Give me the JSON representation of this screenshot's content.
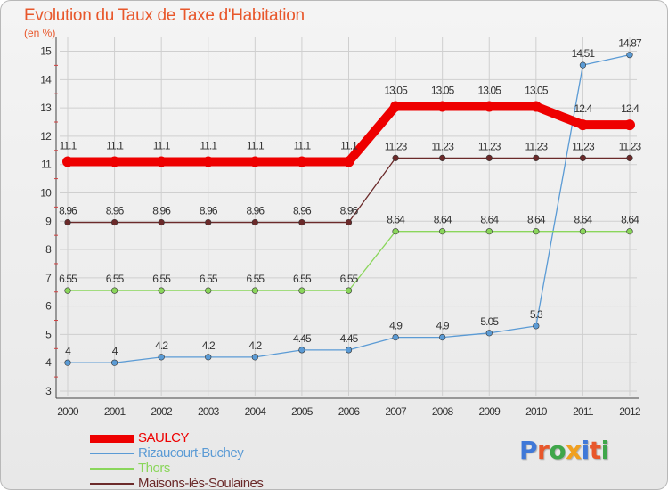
{
  "title": "Evolution du Taux de Taxe d'Habitation",
  "unit_label": "(en %)",
  "brand": {
    "text": "Proxiti",
    "letter_colors": [
      "#3f78d8",
      "#e8572b",
      "#3fa64a",
      "#f0a020",
      "#3f78d8",
      "#e8572b",
      "#3fa64a"
    ]
  },
  "chart_data": {
    "type": "line",
    "title": "Evolution du Taux de Taxe d'Habitation",
    "ylabel": "(en %)",
    "xlabel": "",
    "x": [
      "2000",
      "2001",
      "2002",
      "2003",
      "2004",
      "2005",
      "2006",
      "2007",
      "2008",
      "2009",
      "2010",
      "2011",
      "2012"
    ],
    "yticks": [
      3,
      4,
      5,
      6,
      7,
      8,
      9,
      10,
      11,
      12,
      13,
      14,
      15
    ],
    "ylim": [
      3,
      15.3
    ],
    "grid": true,
    "legend_position": "bottom-left",
    "series": [
      {
        "name": "SAULCY",
        "color": "#ee0000",
        "bold": true,
        "values": [
          11.1,
          11.1,
          11.1,
          11.1,
          11.1,
          11.1,
          11.1,
          13.05,
          13.05,
          13.05,
          13.05,
          12.4,
          12.4
        ],
        "labels": [
          "11.1",
          "11.1",
          "11.1",
          "11.1",
          "11.1",
          "11.1",
          "11.1",
          "13.05",
          "13.05",
          "13.05",
          "13.05",
          "12.4",
          "12.4"
        ]
      },
      {
        "name": "Rizaucourt-Buchey",
        "color": "#5b9bd5",
        "bold": false,
        "values": [
          4,
          4,
          4.2,
          4.2,
          4.2,
          4.45,
          4.45,
          4.9,
          4.9,
          5.05,
          5.3,
          14.51,
          14.87
        ],
        "labels": [
          "4",
          "4",
          "4.2",
          "4.2",
          "4.2",
          "4.45",
          "4.45",
          "4.9",
          "4.9",
          "5.05",
          "5.3",
          "14.51",
          "14.87"
        ]
      },
      {
        "name": "Thors",
        "color": "#8ad65b",
        "bold": false,
        "values": [
          6.55,
          6.55,
          6.55,
          6.55,
          6.55,
          6.55,
          6.55,
          8.64,
          8.64,
          8.64,
          8.64,
          8.64,
          8.64
        ],
        "labels": [
          "6.55",
          "6.55",
          "6.55",
          "6.55",
          "6.55",
          "6.55",
          "6.55",
          "8.64",
          "8.64",
          "8.64",
          "8.64",
          "8.64",
          "8.64"
        ]
      },
      {
        "name": "Maisons-lès-Soulaines",
        "color": "#6b2a2a",
        "bold": false,
        "values": [
          8.96,
          8.96,
          8.96,
          8.96,
          8.96,
          8.96,
          8.96,
          11.23,
          11.23,
          11.23,
          11.23,
          11.23,
          11.23
        ],
        "labels": [
          "8.96",
          "8.96",
          "8.96",
          "8.96",
          "8.96",
          "8.96",
          "8.96",
          "11.23",
          "11.23",
          "11.23",
          "11.23",
          "11.23",
          "11.23"
        ]
      }
    ]
  }
}
